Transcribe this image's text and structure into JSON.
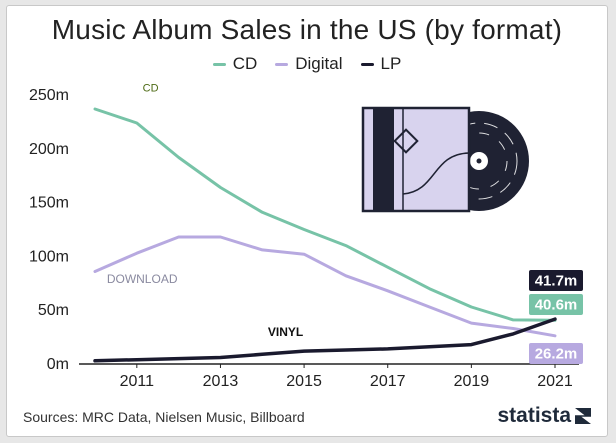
{
  "colors": {
    "cd": "#77c3a7",
    "digital": "#b7a9e0",
    "lp": "#1a1a2e",
    "axis": "#222222"
  },
  "chart_data": {
    "type": "line",
    "title": "Music Album Sales in the US (by format)",
    "ylim": [
      0,
      250
    ],
    "y_ticks": [
      0,
      50,
      100,
      150,
      200,
      250
    ],
    "y_tick_labels": [
      "0m",
      "50m",
      "100m",
      "150m",
      "200m",
      "250m"
    ],
    "x": [
      2010,
      2011,
      2012,
      2013,
      2014,
      2015,
      2016,
      2017,
      2018,
      2019,
      2020,
      2021
    ],
    "x_ticks": [
      2011,
      2013,
      2015,
      2017,
      2019,
      2021
    ],
    "x_tick_labels": [
      "2011",
      "2013",
      "2015",
      "2017",
      "2019",
      "2021"
    ],
    "grid": false,
    "legend_position": "top-center",
    "series": [
      {
        "name": "CD",
        "key": "cd",
        "label": "CD",
        "values": [
          237,
          224,
          192,
          164,
          141,
          125,
          110,
          90,
          70,
          53,
          41,
          40.6
        ]
      },
      {
        "name": "Digital",
        "key": "digital",
        "label": "DOWNLOAD",
        "values": [
          86,
          103,
          118,
          118,
          106,
          102,
          82,
          68,
          53,
          38,
          33,
          26.2
        ]
      },
      {
        "name": "LP",
        "key": "lp",
        "label": "VINYL",
        "values": [
          3,
          4,
          5,
          6,
          9,
          12,
          13,
          14,
          16,
          18,
          28,
          41.7
        ]
      }
    ],
    "end_labels": [
      {
        "key": "lp",
        "text": "41.7m"
      },
      {
        "key": "cd",
        "text": "40.6m"
      },
      {
        "key": "digital",
        "text": "26.2m"
      }
    ]
  },
  "footer": {
    "source": "Sources: MRC Data, Nielsen Music, Billboard",
    "brand": "statista"
  },
  "illustration": {
    "icon": "vinyl-record-album-icon"
  }
}
